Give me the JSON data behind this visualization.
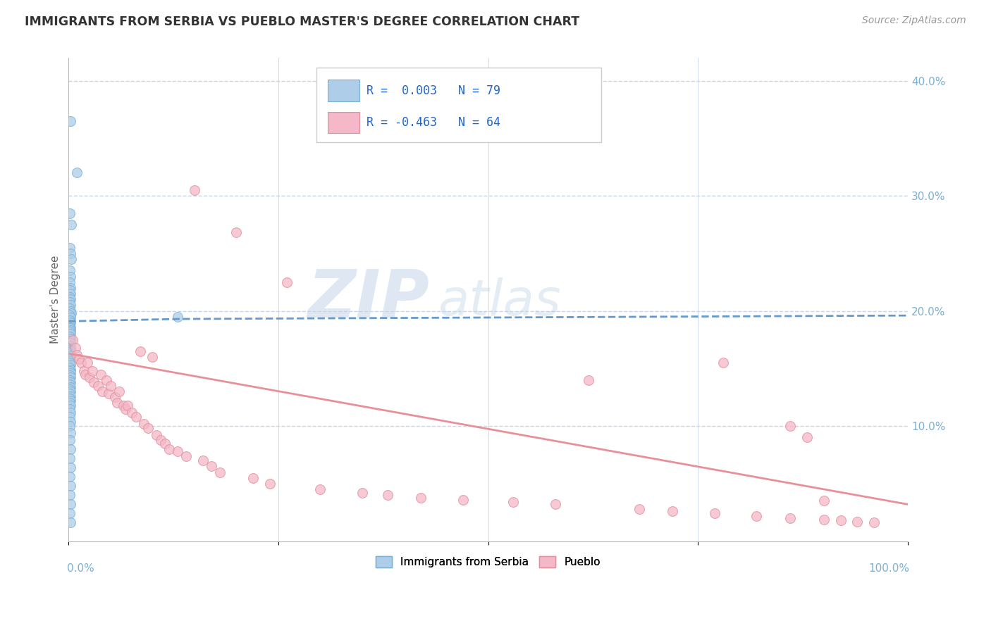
{
  "title": "IMMIGRANTS FROM SERBIA VS PUEBLO MASTER'S DEGREE CORRELATION CHART",
  "source_text": "Source: ZipAtlas.com",
  "ylabel": "Master's Degree",
  "right_yticks": [
    "40.0%",
    "30.0%",
    "20.0%",
    "10.0%"
  ],
  "right_ytick_vals": [
    0.4,
    0.3,
    0.2,
    0.1
  ],
  "legend_entries": [
    {
      "label": "Immigrants from Serbia",
      "R": "0.003",
      "N": "79",
      "fill": "#aecde8",
      "edge": "#7ab0d4"
    },
    {
      "label": "Pueblo",
      "R": "-0.463",
      "N": "64",
      "fill": "#f4b8c8",
      "edge": "#e0909a"
    }
  ],
  "blue_scatter_x": [
    0.002,
    0.01,
    0.001,
    0.003,
    0.001,
    0.002,
    0.003,
    0.001,
    0.002,
    0.001,
    0.002,
    0.001,
    0.002,
    0.001,
    0.002,
    0.001,
    0.002,
    0.001,
    0.002,
    0.003,
    0.001,
    0.002,
    0.001,
    0.002,
    0.001,
    0.002,
    0.001,
    0.002,
    0.001,
    0.002,
    0.001,
    0.002,
    0.001,
    0.002,
    0.001,
    0.002,
    0.001,
    0.002,
    0.001,
    0.002,
    0.001,
    0.002,
    0.001,
    0.002,
    0.001,
    0.002,
    0.001,
    0.002,
    0.001,
    0.002,
    0.001,
    0.002,
    0.001,
    0.002,
    0.001,
    0.002,
    0.001,
    0.002,
    0.001,
    0.002,
    0.001,
    0.002,
    0.001,
    0.002,
    0.001,
    0.002,
    0.001,
    0.002,
    0.001,
    0.002,
    0.001,
    0.002,
    0.001,
    0.002,
    0.001,
    0.002,
    0.001,
    0.002,
    0.13
  ],
  "blue_scatter_y": [
    0.365,
    0.32,
    0.285,
    0.275,
    0.255,
    0.25,
    0.245,
    0.235,
    0.23,
    0.225,
    0.22,
    0.218,
    0.215,
    0.212,
    0.21,
    0.208,
    0.205,
    0.202,
    0.2,
    0.198,
    0.196,
    0.194,
    0.192,
    0.19,
    0.188,
    0.186,
    0.185,
    0.183,
    0.182,
    0.18,
    0.178,
    0.176,
    0.174,
    0.172,
    0.17,
    0.168,
    0.166,
    0.165,
    0.163,
    0.161,
    0.159,
    0.157,
    0.155,
    0.153,
    0.151,
    0.149,
    0.148,
    0.146,
    0.144,
    0.142,
    0.14,
    0.138,
    0.136,
    0.134,
    0.132,
    0.13,
    0.128,
    0.126,
    0.124,
    0.122,
    0.12,
    0.118,
    0.115,
    0.112,
    0.108,
    0.104,
    0.1,
    0.094,
    0.088,
    0.08,
    0.072,
    0.064,
    0.056,
    0.048,
    0.04,
    0.032,
    0.024,
    0.016,
    0.195
  ],
  "pink_scatter_x": [
    0.005,
    0.008,
    0.01,
    0.012,
    0.015,
    0.018,
    0.02,
    0.022,
    0.025,
    0.028,
    0.03,
    0.035,
    0.038,
    0.04,
    0.045,
    0.048,
    0.05,
    0.055,
    0.058,
    0.06,
    0.065,
    0.068,
    0.07,
    0.075,
    0.08,
    0.085,
    0.09,
    0.095,
    0.1,
    0.105,
    0.11,
    0.115,
    0.12,
    0.13,
    0.14,
    0.15,
    0.16,
    0.17,
    0.18,
    0.2,
    0.22,
    0.24,
    0.26,
    0.3,
    0.35,
    0.38,
    0.42,
    0.47,
    0.53,
    0.58,
    0.62,
    0.68,
    0.72,
    0.77,
    0.82,
    0.86,
    0.9,
    0.92,
    0.94,
    0.96,
    0.78,
    0.86,
    0.88,
    0.9
  ],
  "pink_scatter_y": [
    0.175,
    0.168,
    0.162,
    0.158,
    0.155,
    0.148,
    0.145,
    0.155,
    0.142,
    0.148,
    0.138,
    0.135,
    0.145,
    0.13,
    0.14,
    0.128,
    0.135,
    0.125,
    0.12,
    0.13,
    0.118,
    0.115,
    0.118,
    0.112,
    0.108,
    0.165,
    0.102,
    0.098,
    0.16,
    0.092,
    0.088,
    0.085,
    0.08,
    0.078,
    0.074,
    0.305,
    0.07,
    0.065,
    0.06,
    0.268,
    0.055,
    0.05,
    0.225,
    0.045,
    0.042,
    0.04,
    0.038,
    0.036,
    0.034,
    0.032,
    0.14,
    0.028,
    0.026,
    0.024,
    0.022,
    0.02,
    0.019,
    0.018,
    0.017,
    0.016,
    0.155,
    0.1,
    0.09,
    0.035
  ],
  "blue_line_x": [
    0.0,
    0.13,
    1.0
  ],
  "blue_line_y": [
    0.191,
    0.193,
    0.196
  ],
  "pink_line_x": [
    0.0,
    1.0
  ],
  "pink_line_y": [
    0.163,
    0.032
  ],
  "watermark_zip": "ZIP",
  "watermark_atlas": "atlas",
  "xlim": [
    0.0,
    1.0
  ],
  "ylim": [
    0.0,
    0.42
  ],
  "scatter_size": 100,
  "scatter_alpha": 0.75,
  "blue_fill": "#aecde8",
  "blue_edge": "#7ab0d4",
  "pink_fill": "#f4b8c8",
  "pink_edge": "#e0909a",
  "trend_blue_color": "#6699cc",
  "trend_pink_color": "#e8909a",
  "background_color": "#ffffff",
  "grid_color": "#c8d4e8",
  "axis_color": "#7ab0d4",
  "title_color": "#333333",
  "source_color": "#999999"
}
